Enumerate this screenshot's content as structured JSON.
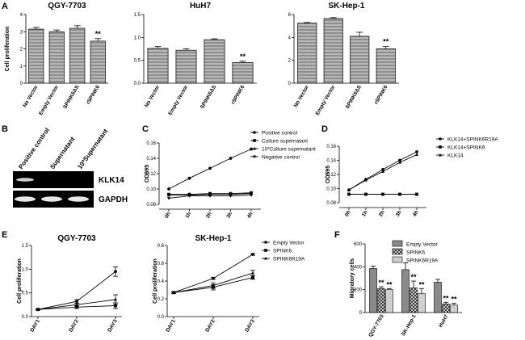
{
  "panel_labels": [
    "A",
    "B",
    "C",
    "D",
    "E",
    "F"
  ],
  "chart_data": [
    {
      "id": "A1",
      "type": "bar",
      "title": "QGY-7703",
      "ylabel": "Cell proliferation",
      "categories": [
        "No Vector",
        "Empty Vector",
        "SPINK6ΔS",
        "rSPINK6"
      ],
      "values": [
        3.15,
        3.0,
        3.2,
        2.45
      ],
      "errors": [
        0.1,
        0.1,
        0.15,
        0.15
      ],
      "ylim": [
        0,
        4
      ],
      "yticks": [
        "0",
        "1",
        "2",
        "3",
        "4"
      ],
      "annotations": [
        {
          "category": "rSPINK6",
          "text": "**"
        }
      ]
    },
    {
      "id": "A2",
      "type": "bar",
      "title": "HuH7",
      "ylabel": "",
      "categories": [
        "No Vector",
        "Empty Vector",
        "SPINK6ΔS",
        "rSPINK6"
      ],
      "values": [
        0.76,
        0.72,
        0.95,
        0.45
      ],
      "errors": [
        0.04,
        0.03,
        0.02,
        0.03
      ],
      "ylim": [
        0,
        1.5
      ],
      "yticks": [
        "0.0",
        "0.5",
        "1.0",
        "1.5"
      ],
      "annotations": [
        {
          "category": "rSPINK6",
          "text": "**"
        }
      ]
    },
    {
      "id": "A3",
      "type": "bar",
      "title": "SK-Hep-1",
      "ylabel": "",
      "categories": [
        "No Vector",
        "Empty Vector",
        "SPINK6ΔS",
        "rSPINK6"
      ],
      "values": [
        5.25,
        5.65,
        4.1,
        3.0
      ],
      "errors": [
        0.05,
        0.08,
        0.35,
        0.2
      ],
      "ylim": [
        0,
        6
      ],
      "yticks": [
        "0",
        "2",
        "4",
        "6"
      ],
      "annotations": [
        {
          "category": "rSPINK6",
          "text": "**"
        }
      ]
    },
    {
      "id": "C",
      "type": "line",
      "ylabel": "OD595",
      "x": [
        "0h",
        "1h",
        "2h",
        "3h",
        "4h"
      ],
      "ylim": [
        0.08,
        0.16
      ],
      "yticks": [
        "0.08",
        "0.10",
        "0.12",
        "0.14",
        "0.16"
      ],
      "series": [
        {
          "name": "Positive control",
          "marker": "circle",
          "values": [
            0.1,
            0.114,
            0.127,
            0.14,
            0.152
          ]
        },
        {
          "name": "Culture supernatant",
          "marker": "square",
          "values": [
            0.093,
            0.093,
            0.094,
            0.094,
            0.095
          ]
        },
        {
          "name": "10*Culture supernatant",
          "marker": "triangle-up",
          "values": [
            0.092,
            0.092,
            0.093,
            0.093,
            0.094
          ]
        },
        {
          "name": "Negative control",
          "marker": "triangle-down",
          "values": [
            0.088,
            0.091,
            0.091,
            0.091,
            0.092
          ]
        }
      ]
    },
    {
      "id": "D",
      "type": "line",
      "ylabel": "OD595",
      "x": [
        "0h",
        "1h",
        "2h",
        "3h",
        "4h"
      ],
      "ylim": [
        0.08,
        0.16
      ],
      "yticks": [
        "0.08",
        "0.10",
        "0.12",
        "0.14",
        "0.16"
      ],
      "series": [
        {
          "name": "KLK14+SPINK6R19A",
          "marker": "circle",
          "values": [
            0.098,
            0.113,
            0.127,
            0.14,
            0.152
          ]
        },
        {
          "name": "KLK14+SPINK6",
          "marker": "square",
          "values": [
            0.092,
            0.092,
            0.092,
            0.092,
            0.092
          ]
        },
        {
          "name": "KLK14",
          "marker": "triangle-up",
          "values": [
            0.098,
            0.112,
            0.124,
            0.137,
            0.148
          ]
        }
      ]
    },
    {
      "id": "E1",
      "type": "line",
      "title": "QGY-7703",
      "ylabel": "Cell proliferation",
      "x": [
        "DAY1",
        "DAY2",
        "DAY3"
      ],
      "ylim": [
        0,
        1.5
      ],
      "yticks": [
        "0.0",
        "0.5",
        "1.0",
        "1.5"
      ],
      "series": [
        {
          "name": "Empty Vector",
          "marker": "circle",
          "values": [
            0.15,
            0.32,
            0.95
          ],
          "errors": [
            0.01,
            0.04,
            0.1
          ]
        },
        {
          "name": "SPINK6",
          "marker": "square",
          "values": [
            0.15,
            0.2,
            0.23
          ],
          "errors": [
            0.01,
            0.03,
            0.06
          ]
        },
        {
          "name": "SPINK6R19A",
          "marker": "triangle-up",
          "values": [
            0.15,
            0.25,
            0.36
          ],
          "errors": [
            0.01,
            0.03,
            0.1
          ]
        }
      ]
    },
    {
      "id": "E2",
      "type": "line",
      "title": "SK-Hep-1",
      "ylabel": "Cell proliferation",
      "x": [
        "DAY1",
        "DAY2",
        "DAY3"
      ],
      "ylim": [
        0,
        0.8
      ],
      "yticks": [
        "0.0",
        "0.2",
        "0.4",
        "0.6",
        "0.8"
      ],
      "series": [
        {
          "name": "Empty Vector",
          "marker": "circle",
          "values": [
            0.27,
            0.43,
            0.7
          ],
          "errors": [
            0.01,
            0.01,
            0.01
          ]
        },
        {
          "name": "SPINK6",
          "marker": "square",
          "values": [
            0.27,
            0.33,
            0.44
          ],
          "errors": [
            0.01,
            0.03,
            0.02
          ]
        },
        {
          "name": "SPINK6R19A",
          "marker": "triangle-up",
          "values": [
            0.27,
            0.35,
            0.49
          ],
          "errors": [
            0.01,
            0.03,
            0.03
          ]
        }
      ]
    },
    {
      "id": "F",
      "type": "bar",
      "ylabel": "Migratory cells",
      "categories": [
        "QGY-7703",
        "SK-Hep-1",
        "HuH7"
      ],
      "ylim": [
        0,
        600
      ],
      "yticks": [
        "0",
        "200",
        "400",
        "600"
      ],
      "series": [
        {
          "name": "Empty Vector",
          "pattern": "solid-gray",
          "values": [
            385,
            375,
            265
          ],
          "errors": [
            20,
            60,
            25
          ]
        },
        {
          "name": "SPINK6",
          "pattern": "crosshatch",
          "values": [
            210,
            215,
            75
          ],
          "errors": [
            15,
            60,
            15
          ]
        },
        {
          "name": "SPINK6R19A",
          "pattern": "light-gray",
          "values": [
            200,
            165,
            65
          ],
          "errors": [
            10,
            45,
            15
          ]
        }
      ],
      "annotations": [
        {
          "series": "SPINK6",
          "text": "**"
        },
        {
          "series": "SPINK6R19A",
          "text": "**"
        }
      ]
    }
  ],
  "blot": {
    "lanes": [
      "Positive control",
      "Supernatant",
      "10*Supernatant"
    ],
    "bands": [
      "KLK14",
      "GAPDH"
    ]
  }
}
